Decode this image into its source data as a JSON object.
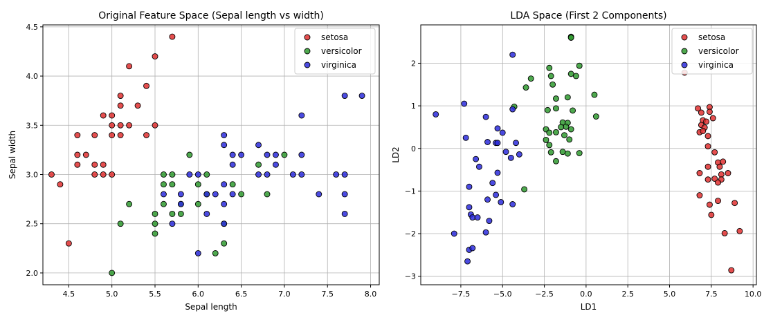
{
  "colors": {
    "setosa": "#e03030",
    "versicolor": "#2f9a2f",
    "virginica": "#2b2bdc",
    "grid": "#b0b0b0"
  },
  "chart_data": [
    {
      "type": "scatter",
      "title": "Original Feature Space (Sepal length vs width)",
      "xlabel": "Sepal length",
      "ylabel": "Sepal width",
      "xlim": [
        4.2,
        8.1
      ],
      "ylim": [
        1.88,
        4.52
      ],
      "xticks": [
        4.5,
        5.0,
        5.5,
        6.0,
        6.5,
        7.0,
        7.5,
        8.0
      ],
      "xtick_labels": [
        "4.5",
        "5.0",
        "5.5",
        "6.0",
        "6.5",
        "7.0",
        "7.5",
        "8.0"
      ],
      "yticks": [
        2.0,
        2.5,
        3.0,
        3.5,
        4.0,
        4.5
      ],
      "ytick_labels": [
        "2.0",
        "2.5",
        "3.0",
        "3.5",
        "4.0",
        "4.5"
      ],
      "grid": true,
      "legend": "top-right",
      "series": [
        {
          "name": "setosa",
          "color": "#e03030",
          "points": [
            [
              4.3,
              3.0
            ],
            [
              4.4,
              2.9
            ],
            [
              4.5,
              2.3
            ],
            [
              4.6,
              3.4
            ],
            [
              4.6,
              3.2
            ],
            [
              4.6,
              3.1
            ],
            [
              4.7,
              3.2
            ],
            [
              4.8,
              3.4
            ],
            [
              4.8,
              3.1
            ],
            [
              4.8,
              3.0
            ],
            [
              4.9,
              3.6
            ],
            [
              4.9,
              3.1
            ],
            [
              4.9,
              3.0
            ],
            [
              5.0,
              3.6
            ],
            [
              5.0,
              3.5
            ],
            [
              5.0,
              3.4
            ],
            [
              5.0,
              3.0
            ],
            [
              5.1,
              3.8
            ],
            [
              5.1,
              3.7
            ],
            [
              5.1,
              3.5
            ],
            [
              5.1,
              3.4
            ],
            [
              5.2,
              4.1
            ],
            [
              5.2,
              3.5
            ],
            [
              5.3,
              3.7
            ],
            [
              5.4,
              3.9
            ],
            [
              5.4,
              3.4
            ],
            [
              5.5,
              4.2
            ],
            [
              5.5,
              3.5
            ],
            [
              5.7,
              4.4
            ]
          ]
        },
        {
          "name": "versicolor",
          "color": "#2f9a2f",
          "points": [
            [
              5.0,
              2.0
            ],
            [
              5.1,
              2.5
            ],
            [
              5.2,
              2.7
            ],
            [
              5.5,
              2.6
            ],
            [
              5.5,
              2.5
            ],
            [
              5.5,
              2.4
            ],
            [
              5.6,
              3.0
            ],
            [
              5.6,
              2.9
            ],
            [
              5.6,
              2.7
            ],
            [
              5.7,
              3.0
            ],
            [
              5.7,
              2.9
            ],
            [
              5.7,
              2.6
            ],
            [
              5.8,
              2.7
            ],
            [
              5.8,
              2.6
            ],
            [
              5.9,
              3.2
            ],
            [
              6.0,
              2.9
            ],
            [
              6.0,
              2.7
            ],
            [
              6.1,
              3.0
            ],
            [
              6.1,
              2.8
            ],
            [
              6.2,
              2.2
            ],
            [
              6.3,
              2.3
            ],
            [
              6.3,
              2.5
            ],
            [
              6.4,
              2.9
            ],
            [
              6.5,
              2.8
            ],
            [
              6.7,
              3.1
            ],
            [
              6.8,
              2.8
            ],
            [
              7.0,
              3.2
            ]
          ]
        },
        {
          "name": "virginica",
          "color": "#2b2bdc",
          "points": [
            [
              5.6,
              2.8
            ],
            [
              5.7,
              2.5
            ],
            [
              5.8,
              2.8
            ],
            [
              5.8,
              2.7
            ],
            [
              5.9,
              3.0
            ],
            [
              6.0,
              3.0
            ],
            [
              6.0,
              2.2
            ],
            [
              6.1,
              2.8
            ],
            [
              6.1,
              2.6
            ],
            [
              6.2,
              2.8
            ],
            [
              6.3,
              3.4
            ],
            [
              6.3,
              3.3
            ],
            [
              6.3,
              2.9
            ],
            [
              6.3,
              2.7
            ],
            [
              6.3,
              2.5
            ],
            [
              6.4,
              3.2
            ],
            [
              6.4,
              3.1
            ],
            [
              6.4,
              2.8
            ],
            [
              6.5,
              3.2
            ],
            [
              6.7,
              3.3
            ],
            [
              6.7,
              3.0
            ],
            [
              6.8,
              3.2
            ],
            [
              6.8,
              3.0
            ],
            [
              6.9,
              3.2
            ],
            [
              6.9,
              3.1
            ],
            [
              7.1,
              3.0
            ],
            [
              7.2,
              3.6
            ],
            [
              7.2,
              3.2
            ],
            [
              7.2,
              3.0
            ],
            [
              7.4,
              2.8
            ],
            [
              7.6,
              3.0
            ],
            [
              7.7,
              3.8
            ],
            [
              7.7,
              3.0
            ],
            [
              7.7,
              2.8
            ],
            [
              7.7,
              2.6
            ],
            [
              7.9,
              3.8
            ]
          ]
        }
      ]
    },
    {
      "type": "scatter",
      "title": "LDA Space (First 2 Components)",
      "xlabel": "LD1",
      "ylabel": "LD2",
      "xlim": [
        -9.9,
        10.2
      ],
      "ylim": [
        -3.2,
        2.9
      ],
      "xticks": [
        -7.5,
        -5.0,
        -2.5,
        0.0,
        2.5,
        5.0,
        7.5,
        10.0
      ],
      "xtick_labels": [
        "−7.5",
        "−5.0",
        "−2.5",
        "0.0",
        "2.5",
        "5.0",
        "7.5",
        "10.0"
      ],
      "yticks": [
        -3,
        -2,
        -1,
        0,
        1,
        2
      ],
      "ytick_labels": [
        "−3",
        "−2",
        "−1",
        "0",
        "1",
        "2"
      ],
      "grid": true,
      "legend": "top-right",
      "series": [
        {
          "name": "setosa",
          "color": "#e03030",
          "points": [
            [
              5.9,
              1.78
            ],
            [
              6.7,
              0.94
            ],
            [
              6.9,
              0.84
            ],
            [
              7.4,
              0.97
            ],
            [
              7.4,
              0.86
            ],
            [
              7.0,
              0.66
            ],
            [
              7.2,
              0.63
            ],
            [
              6.9,
              0.55
            ],
            [
              7.1,
              0.49
            ],
            [
              6.8,
              0.38
            ],
            [
              7.0,
              0.41
            ],
            [
              7.6,
              0.71
            ],
            [
              7.3,
              0.29
            ],
            [
              7.3,
              0.05
            ],
            [
              7.7,
              -0.09
            ],
            [
              7.9,
              -0.33
            ],
            [
              8.2,
              -0.31
            ],
            [
              7.3,
              -0.43
            ],
            [
              8.0,
              -0.43
            ],
            [
              6.8,
              -0.58
            ],
            [
              8.1,
              -0.61
            ],
            [
              8.5,
              -0.58
            ],
            [
              7.3,
              -0.73
            ],
            [
              7.7,
              -0.71
            ],
            [
              8.1,
              -0.73
            ],
            [
              7.9,
              -0.8
            ],
            [
              6.8,
              -1.1
            ],
            [
              7.9,
              -1.23
            ],
            [
              7.4,
              -1.32
            ],
            [
              8.9,
              -1.28
            ],
            [
              7.5,
              -1.56
            ],
            [
              8.3,
              -1.99
            ],
            [
              9.2,
              -1.94
            ],
            [
              8.7,
              -2.86
            ]
          ]
        },
        {
          "name": "versicolor",
          "color": "#2f9a2f",
          "points": [
            [
              -0.9,
              2.62
            ],
            [
              -0.9,
              2.6
            ],
            [
              -2.2,
              1.89
            ],
            [
              -0.4,
              1.94
            ],
            [
              -0.9,
              1.75
            ],
            [
              -0.6,
              1.7
            ],
            [
              -2.1,
              1.7
            ],
            [
              -3.3,
              1.64
            ],
            [
              -2.0,
              1.5
            ],
            [
              -3.6,
              1.43
            ],
            [
              0.5,
              1.26
            ],
            [
              -1.8,
              1.17
            ],
            [
              -1.1,
              1.2
            ],
            [
              -4.3,
              0.98
            ],
            [
              -1.8,
              0.94
            ],
            [
              -2.3,
              0.9
            ],
            [
              -0.8,
              0.89
            ],
            [
              0.6,
              0.75
            ],
            [
              -1.4,
              0.61
            ],
            [
              -1.1,
              0.6
            ],
            [
              -1.2,
              0.51
            ],
            [
              -2.4,
              0.45
            ],
            [
              -1.5,
              0.5
            ],
            [
              -0.9,
              0.45
            ],
            [
              -2.2,
              0.37
            ],
            [
              -1.8,
              0.38
            ],
            [
              -1.3,
              0.31
            ],
            [
              -2.4,
              0.2
            ],
            [
              -1.0,
              0.21
            ],
            [
              -2.2,
              0.08
            ],
            [
              -1.4,
              -0.08
            ],
            [
              -2.1,
              -0.09
            ],
            [
              -1.1,
              -0.12
            ],
            [
              -0.4,
              -0.11
            ],
            [
              -1.8,
              -0.3
            ],
            [
              -3.7,
              -0.96
            ]
          ]
        },
        {
          "name": "virginica",
          "color": "#2b2bdc",
          "points": [
            [
              -4.4,
              2.2
            ],
            [
              -7.3,
              1.05
            ],
            [
              -9.0,
              0.8
            ],
            [
              -4.4,
              0.92
            ],
            [
              -6.0,
              0.74
            ],
            [
              -7.2,
              0.25
            ],
            [
              -5.0,
              0.37
            ],
            [
              -5.3,
              0.47
            ],
            [
              -5.9,
              0.15
            ],
            [
              -5.4,
              0.13
            ],
            [
              -5.3,
              0.13
            ],
            [
              -4.2,
              0.13
            ],
            [
              -4.8,
              -0.08
            ],
            [
              -4.0,
              -0.14
            ],
            [
              -6.6,
              -0.25
            ],
            [
              -4.5,
              -0.22
            ],
            [
              -6.4,
              -0.43
            ],
            [
              -5.3,
              -0.57
            ],
            [
              -7.0,
              -0.9
            ],
            [
              -5.6,
              -0.81
            ],
            [
              -5.4,
              -1.09
            ],
            [
              -5.9,
              -1.2
            ],
            [
              -5.1,
              -1.26
            ],
            [
              -4.4,
              -1.31
            ],
            [
              -7.0,
              -1.38
            ],
            [
              -6.9,
              -1.55
            ],
            [
              -6.8,
              -1.62
            ],
            [
              -6.5,
              -1.62
            ],
            [
              -5.8,
              -1.7
            ],
            [
              -7.9,
              -2.0
            ],
            [
              -6.0,
              -1.97
            ],
            [
              -7.0,
              -2.38
            ],
            [
              -6.8,
              -2.34
            ],
            [
              -7.1,
              -2.65
            ]
          ]
        }
      ]
    }
  ]
}
